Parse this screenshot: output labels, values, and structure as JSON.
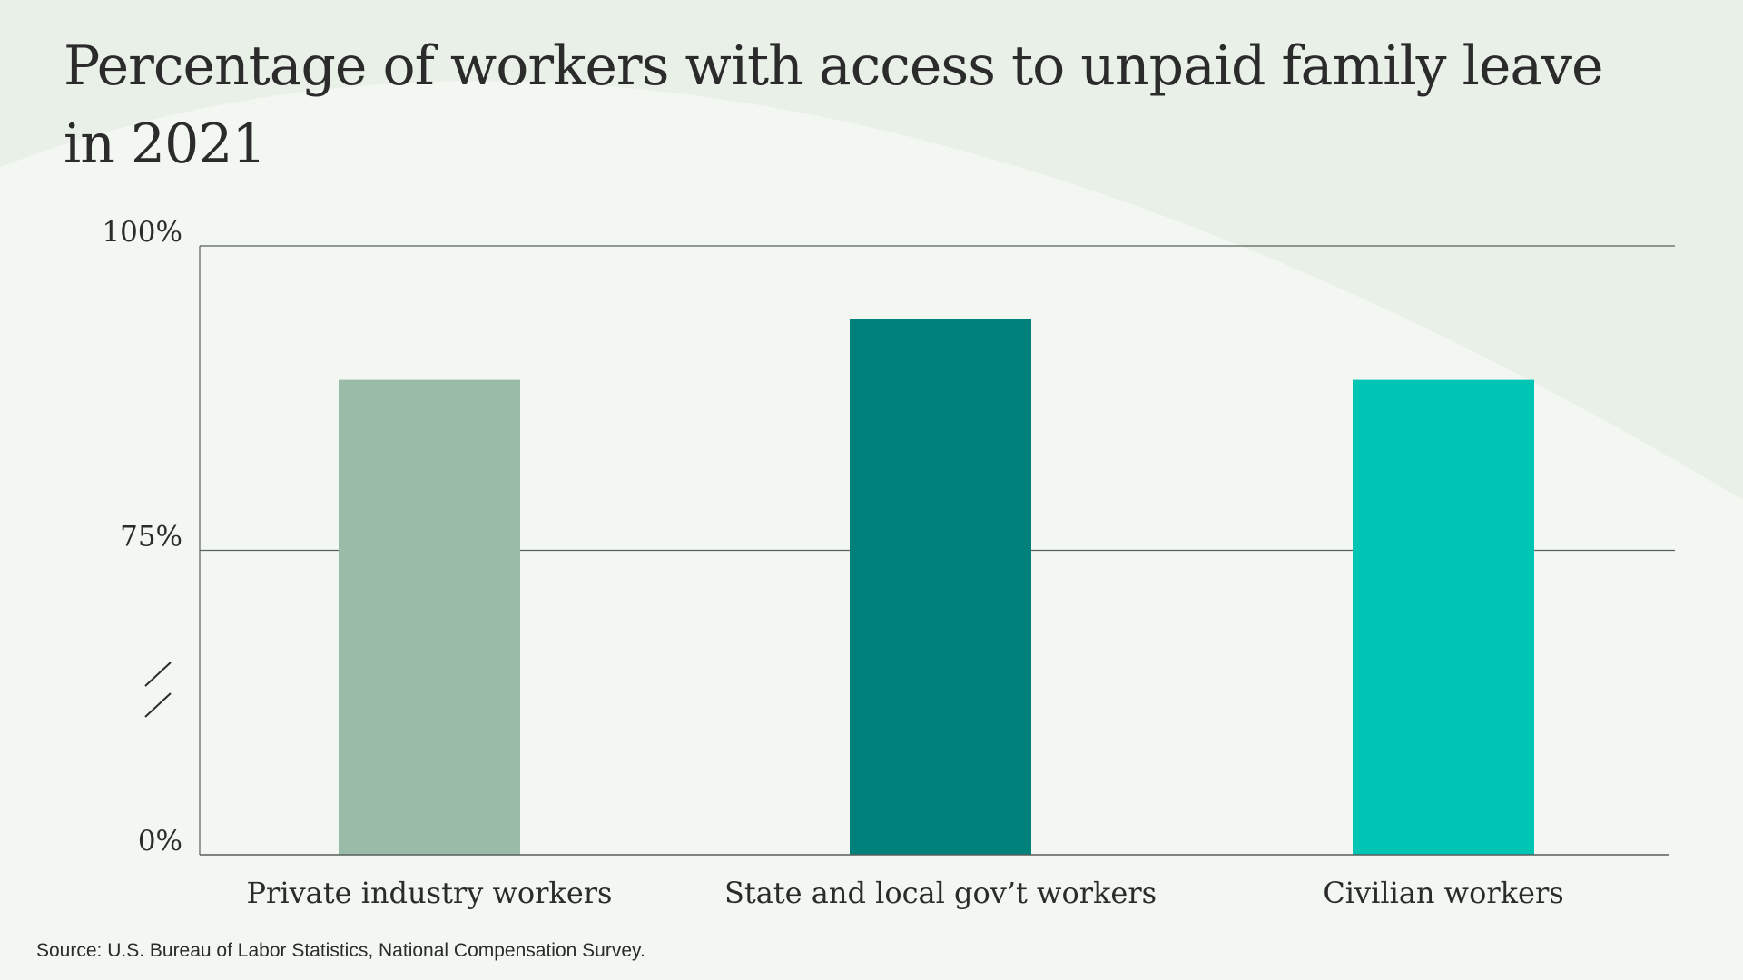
{
  "chart_data": {
    "type": "bar",
    "title": "Percentage of workers with access to unpaid family leave in 2021",
    "categories": [
      "Private industry workers",
      "State and local gov’t workers",
      "Civilian workers"
    ],
    "values": [
      89,
      94,
      89
    ],
    "colors": [
      "#9bbba9",
      "#00807b",
      "#00c4b4"
    ],
    "ylim": [
      0,
      100
    ],
    "yticks": [
      {
        "value": 0,
        "label": "0%"
      },
      {
        "value": 75,
        "label": "75%"
      },
      {
        "value": 100,
        "label": "100%"
      }
    ],
    "axis_break": true,
    "grid": true,
    "source": "Source: U.S. Bureau of Labor Statistics, National Compensation Survey."
  }
}
